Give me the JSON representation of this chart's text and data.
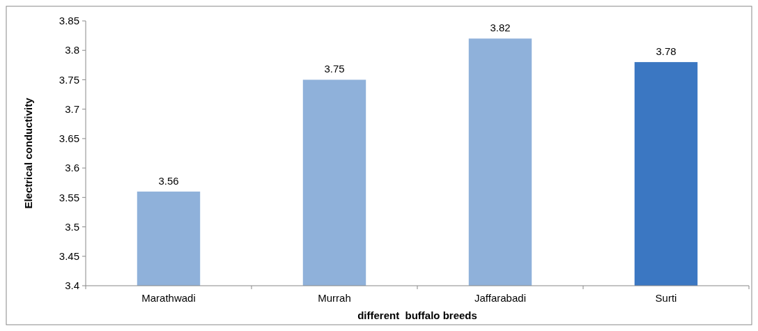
{
  "chart_data": {
    "type": "bar",
    "xlabel": "different  buffalo breeds",
    "ylabel": "Electrical conductivity",
    "categories": [
      "Marathwadi",
      "Murrah",
      "Jaffarabadi",
      "Surti"
    ],
    "values": [
      3.56,
      3.75,
      3.82,
      3.78
    ],
    "colors": [
      "#8fb1da",
      "#8fb1da",
      "#8fb1da",
      "#3b77c2"
    ],
    "ylim": [
      3.4,
      3.85
    ],
    "yticks": [
      3.4,
      3.45,
      3.5,
      3.55,
      3.6,
      3.65,
      3.7,
      3.75,
      3.8,
      3.85
    ],
    "data_labels": true
  }
}
